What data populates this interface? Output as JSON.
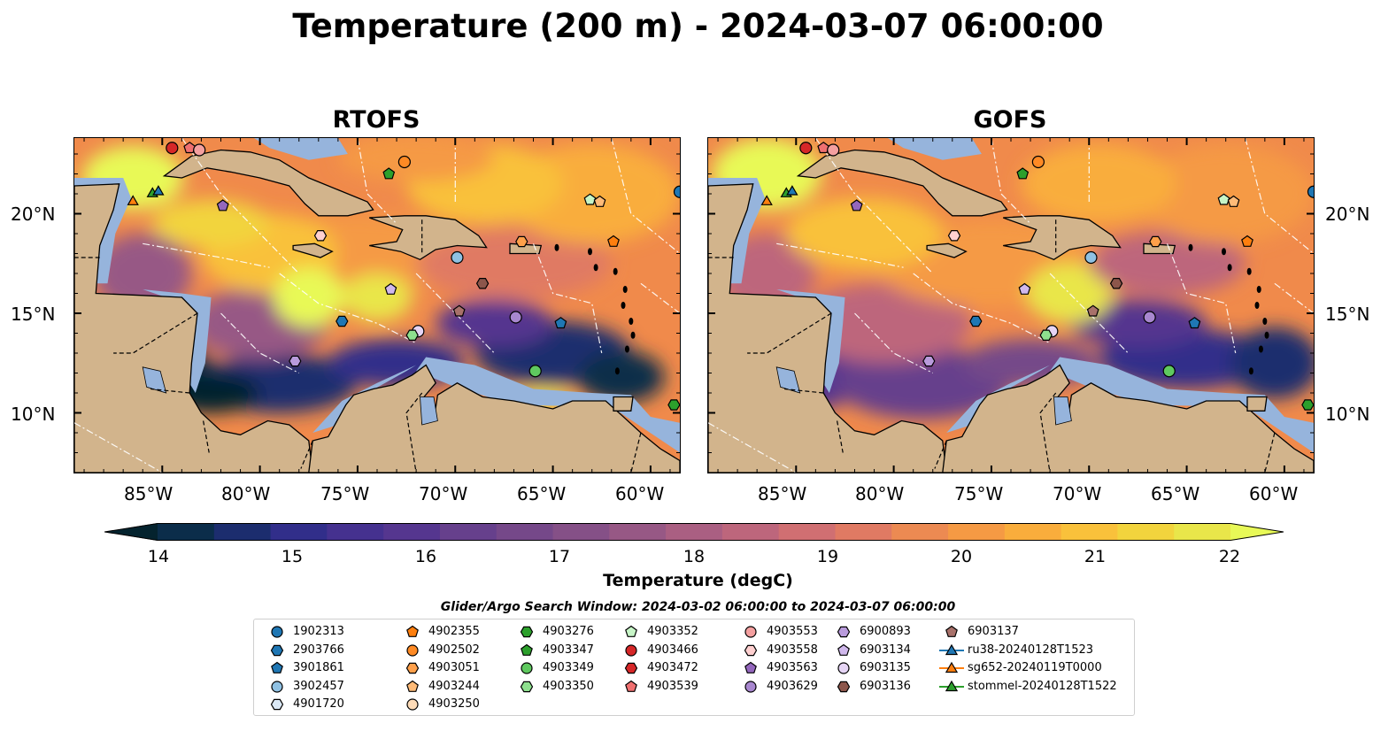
{
  "title": "Temperature (200 m) - 2024-03-07 06:00:00",
  "panels": [
    {
      "title": "RTOFS"
    },
    {
      "title": "GOFS"
    }
  ],
  "axes": {
    "lon_ticks": [
      "85°W",
      "80°W",
      "75°W",
      "70°W",
      "65°W",
      "60°W"
    ],
    "lat_ticks": [
      "20°N",
      "15°N",
      "10°N"
    ],
    "lon_range": [
      -89.5,
      -58.5
    ],
    "lat_range": [
      7.0,
      23.8
    ]
  },
  "colorbar": {
    "label": "Temperature (degC)",
    "ticks": [
      "14",
      "15",
      "16",
      "17",
      "18",
      "19",
      "20",
      "21",
      "22"
    ],
    "range": [
      14,
      22
    ],
    "extend": "both",
    "colormap": "thermal",
    "colors": [
      "#04232e",
      "#0b2d4a",
      "#1c2d6e",
      "#312e8a",
      "#45318f",
      "#55368f",
      "#66408c",
      "#754889",
      "#855087",
      "#975885",
      "#aa5f82",
      "#bd667c",
      "#d06f72",
      "#e07a63",
      "#ec8a52",
      "#f59a44",
      "#f9ad3c",
      "#f9c13b",
      "#f2d43d",
      "#e9e64a",
      "#e8f957"
    ]
  },
  "map_colors": {
    "land": "#d2b48c",
    "shallow": "#96b4dc",
    "deep": "#04232e"
  },
  "legend": {
    "title": "Glider/Argo Search Window: 2024-03-02 06:00:00 to 2024-03-07 06:00:00",
    "items": [
      {
        "label": "1902313",
        "marker": "circle",
        "color": "#1f77b4"
      },
      {
        "label": "2903766",
        "marker": "hexagon",
        "color": "#1f77b4"
      },
      {
        "label": "3901861",
        "marker": "pentagon",
        "color": "#1f77b4"
      },
      {
        "label": "3902457",
        "marker": "circle",
        "color": "#8fc1e3"
      },
      {
        "label": "4901720",
        "marker": "hexagon",
        "color": "#dbe9f6"
      },
      {
        "label": "4902355",
        "marker": "pentagon",
        "color": "#ff7f0e"
      },
      {
        "label": "4902502",
        "marker": "circle",
        "color": "#ff8a24"
      },
      {
        "label": "4903051",
        "marker": "hexagon",
        "color": "#ffa04a"
      },
      {
        "label": "4903244",
        "marker": "pentagon",
        "color": "#ffbb78"
      },
      {
        "label": "4903250",
        "marker": "circle",
        "color": "#ffdcb8"
      },
      {
        "label": "4903276",
        "marker": "hexagon",
        "color": "#2ca02c"
      },
      {
        "label": "4903347",
        "marker": "pentagon",
        "color": "#2ca02c"
      },
      {
        "label": "4903349",
        "marker": "circle",
        "color": "#5fc95f"
      },
      {
        "label": "4903350",
        "marker": "hexagon",
        "color": "#8ee08e"
      },
      {
        "label": "4903352",
        "marker": "pentagon",
        "color": "#c7f5c7"
      },
      {
        "label": "4903466",
        "marker": "circle",
        "color": "#d62728"
      },
      {
        "label": "4903472",
        "marker": "hexagon",
        "color": "#d62728"
      },
      {
        "label": "4903539",
        "marker": "pentagon",
        "color": "#f07070"
      },
      {
        "label": "4903553",
        "marker": "circle",
        "color": "#f4a0a0"
      },
      {
        "label": "4903558",
        "marker": "hexagon",
        "color": "#ffd0d0"
      },
      {
        "label": "4903563",
        "marker": "pentagon",
        "color": "#9467bd"
      },
      {
        "label": "4903629",
        "marker": "circle",
        "color": "#a887cf"
      },
      {
        "label": "6900893",
        "marker": "hexagon",
        "color": "#b99bdc"
      },
      {
        "label": "6903134",
        "marker": "pentagon",
        "color": "#d0b8ec"
      },
      {
        "label": "6903135",
        "marker": "circle",
        "color": "#e6d5f5"
      },
      {
        "label": "6903136",
        "marker": "hexagon",
        "color": "#8c564b"
      },
      {
        "label": "6903137",
        "marker": "pentagon",
        "color": "#a8716a"
      },
      {
        "label": "ru38-20240128T1523",
        "marker": "triangle-line",
        "color": "#1f77b4"
      },
      {
        "label": "sg652-20240119T0000",
        "marker": "triangle-line",
        "color": "#ff7f0e"
      },
      {
        "label": "stommel-20240128T1522",
        "marker": "triangle-line",
        "color": "#2ca02c"
      }
    ]
  },
  "platforms": [
    {
      "id": "4903466",
      "lon": -84.5,
      "lat": 23.3
    },
    {
      "id": "4903539",
      "lon": -83.6,
      "lat": 23.3
    },
    {
      "id": "4903553",
      "lon": -83.1,
      "lat": 23.2
    },
    {
      "id": "4902502",
      "lon": -72.6,
      "lat": 22.6
    },
    {
      "id": "4903347",
      "lon": -73.4,
      "lat": 22.0
    },
    {
      "id": "1902313",
      "lon": -58.5,
      "lat": 21.1
    },
    {
      "id": "4903352",
      "lon": -63.1,
      "lat": 20.7
    },
    {
      "id": "4903244",
      "lon": -62.6,
      "lat": 20.6
    },
    {
      "id": "4903563",
      "lon": -81.9,
      "lat": 20.4
    },
    {
      "id": "4903558",
      "lon": -76.9,
      "lat": 18.9
    },
    {
      "id": "4903051",
      "lon": -66.6,
      "lat": 18.6
    },
    {
      "id": "4902355",
      "lon": -61.9,
      "lat": 18.6
    },
    {
      "id": "3902457",
      "lon": -69.9,
      "lat": 17.8
    },
    {
      "id": "6903136",
      "lon": -68.6,
      "lat": 16.5
    },
    {
      "id": "6903134",
      "lon": -73.3,
      "lat": 16.2
    },
    {
      "id": "6903137",
      "lon": -69.8,
      "lat": 15.1
    },
    {
      "id": "4903629",
      "lon": -66.9,
      "lat": 14.8
    },
    {
      "id": "2903766",
      "lon": -75.8,
      "lat": 14.6
    },
    {
      "id": "3901861",
      "lon": -64.6,
      "lat": 14.5
    },
    {
      "id": "6903135",
      "lon": -71.9,
      "lat": 14.1
    },
    {
      "id": "4903350",
      "lon": -72.2,
      "lat": 13.9
    },
    {
      "id": "6900893",
      "lon": -78.2,
      "lat": 12.6
    },
    {
      "id": "4903349",
      "lon": -65.9,
      "lat": 12.1
    },
    {
      "id": "4903276",
      "lon": -58.8,
      "lat": 10.4
    },
    {
      "id": "sg652-20240119T0000",
      "lon": -86.5,
      "lat": 20.6
    },
    {
      "id": "stommel-20240128T1522",
      "lon": -85.5,
      "lat": 21.0
    },
    {
      "id": "ru38-20240128T1523",
      "lon": -85.2,
      "lat": 21.1
    }
  ]
}
